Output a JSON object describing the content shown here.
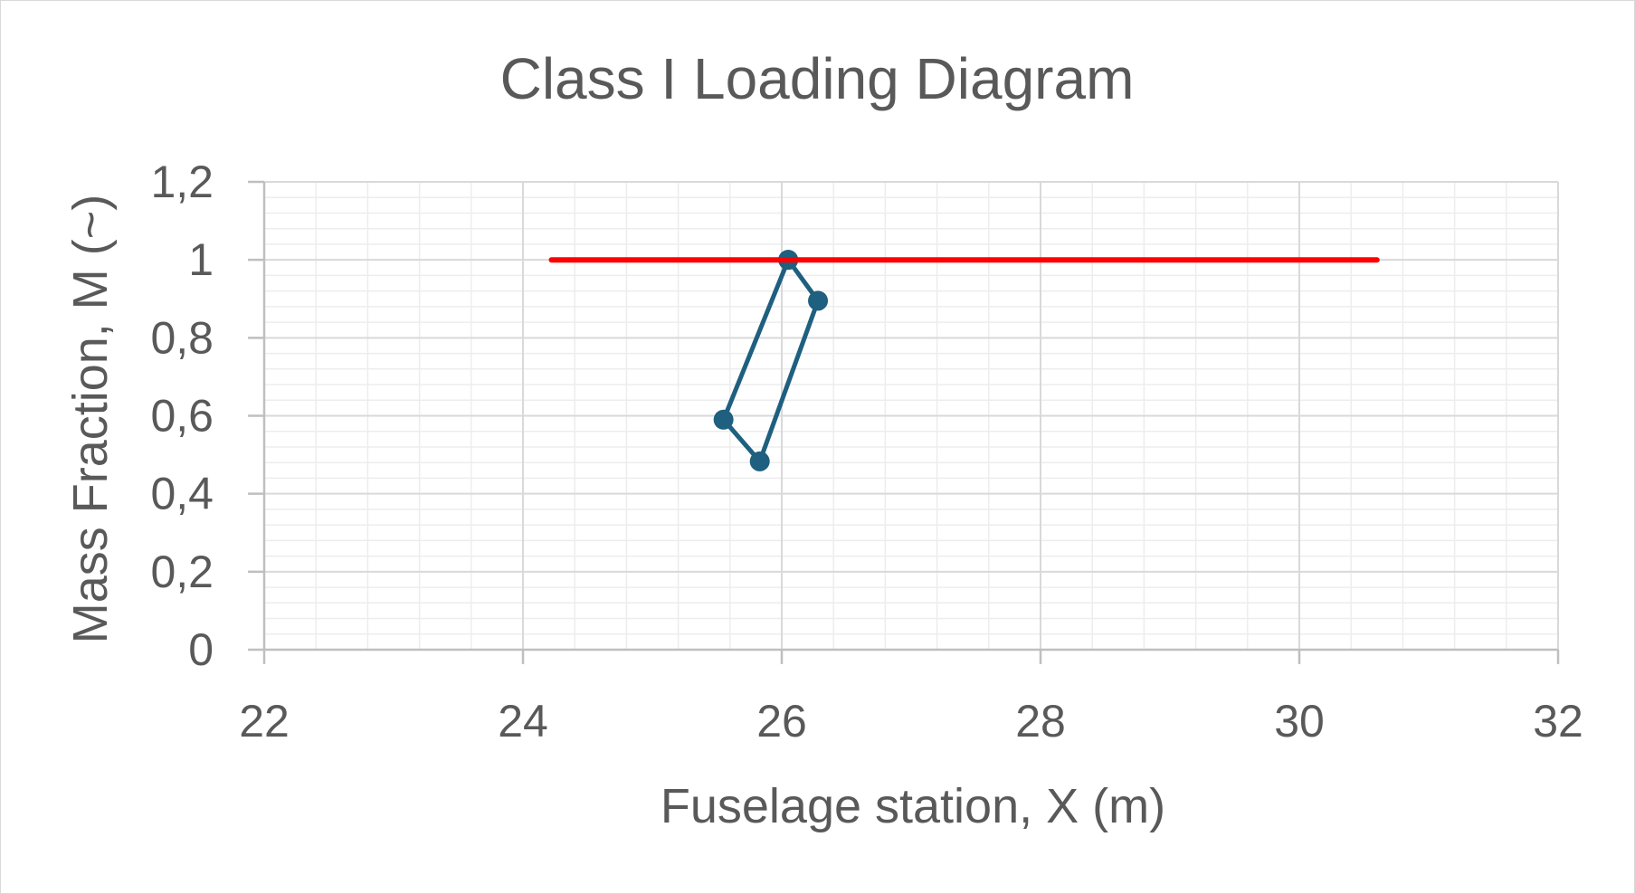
{
  "chart_data": {
    "type": "scatter",
    "title": "Class I Loading Diagram",
    "xlabel": "Fuselage station, X (m)",
    "ylabel": "Mass Fraction, M (~)",
    "xlim": [
      22,
      32
    ],
    "ylim": [
      0,
      1.2
    ],
    "x_ticks": [
      "22",
      "24",
      "26",
      "28",
      "30",
      "32"
    ],
    "y_ticks": [
      "0",
      "0,2",
      "0,4",
      "0,6",
      "0,8",
      "1",
      "1,2"
    ],
    "grid": true,
    "legend": "none",
    "series": [
      {
        "color": "#1f5f7f",
        "markers": true,
        "points": [
          {
            "x": 26.05,
            "y": 1.0
          },
          {
            "x": 26.28,
            "y": 0.895
          },
          {
            "x": 25.83,
            "y": 0.483
          },
          {
            "x": 25.55,
            "y": 0.59
          },
          {
            "x": 26.05,
            "y": 1.0
          }
        ]
      },
      {
        "color": "#ff0000",
        "markers": false,
        "points": [
          {
            "x": 24.22,
            "y": 1.0
          },
          {
            "x": 30.6,
            "y": 1.0
          }
        ]
      }
    ]
  }
}
